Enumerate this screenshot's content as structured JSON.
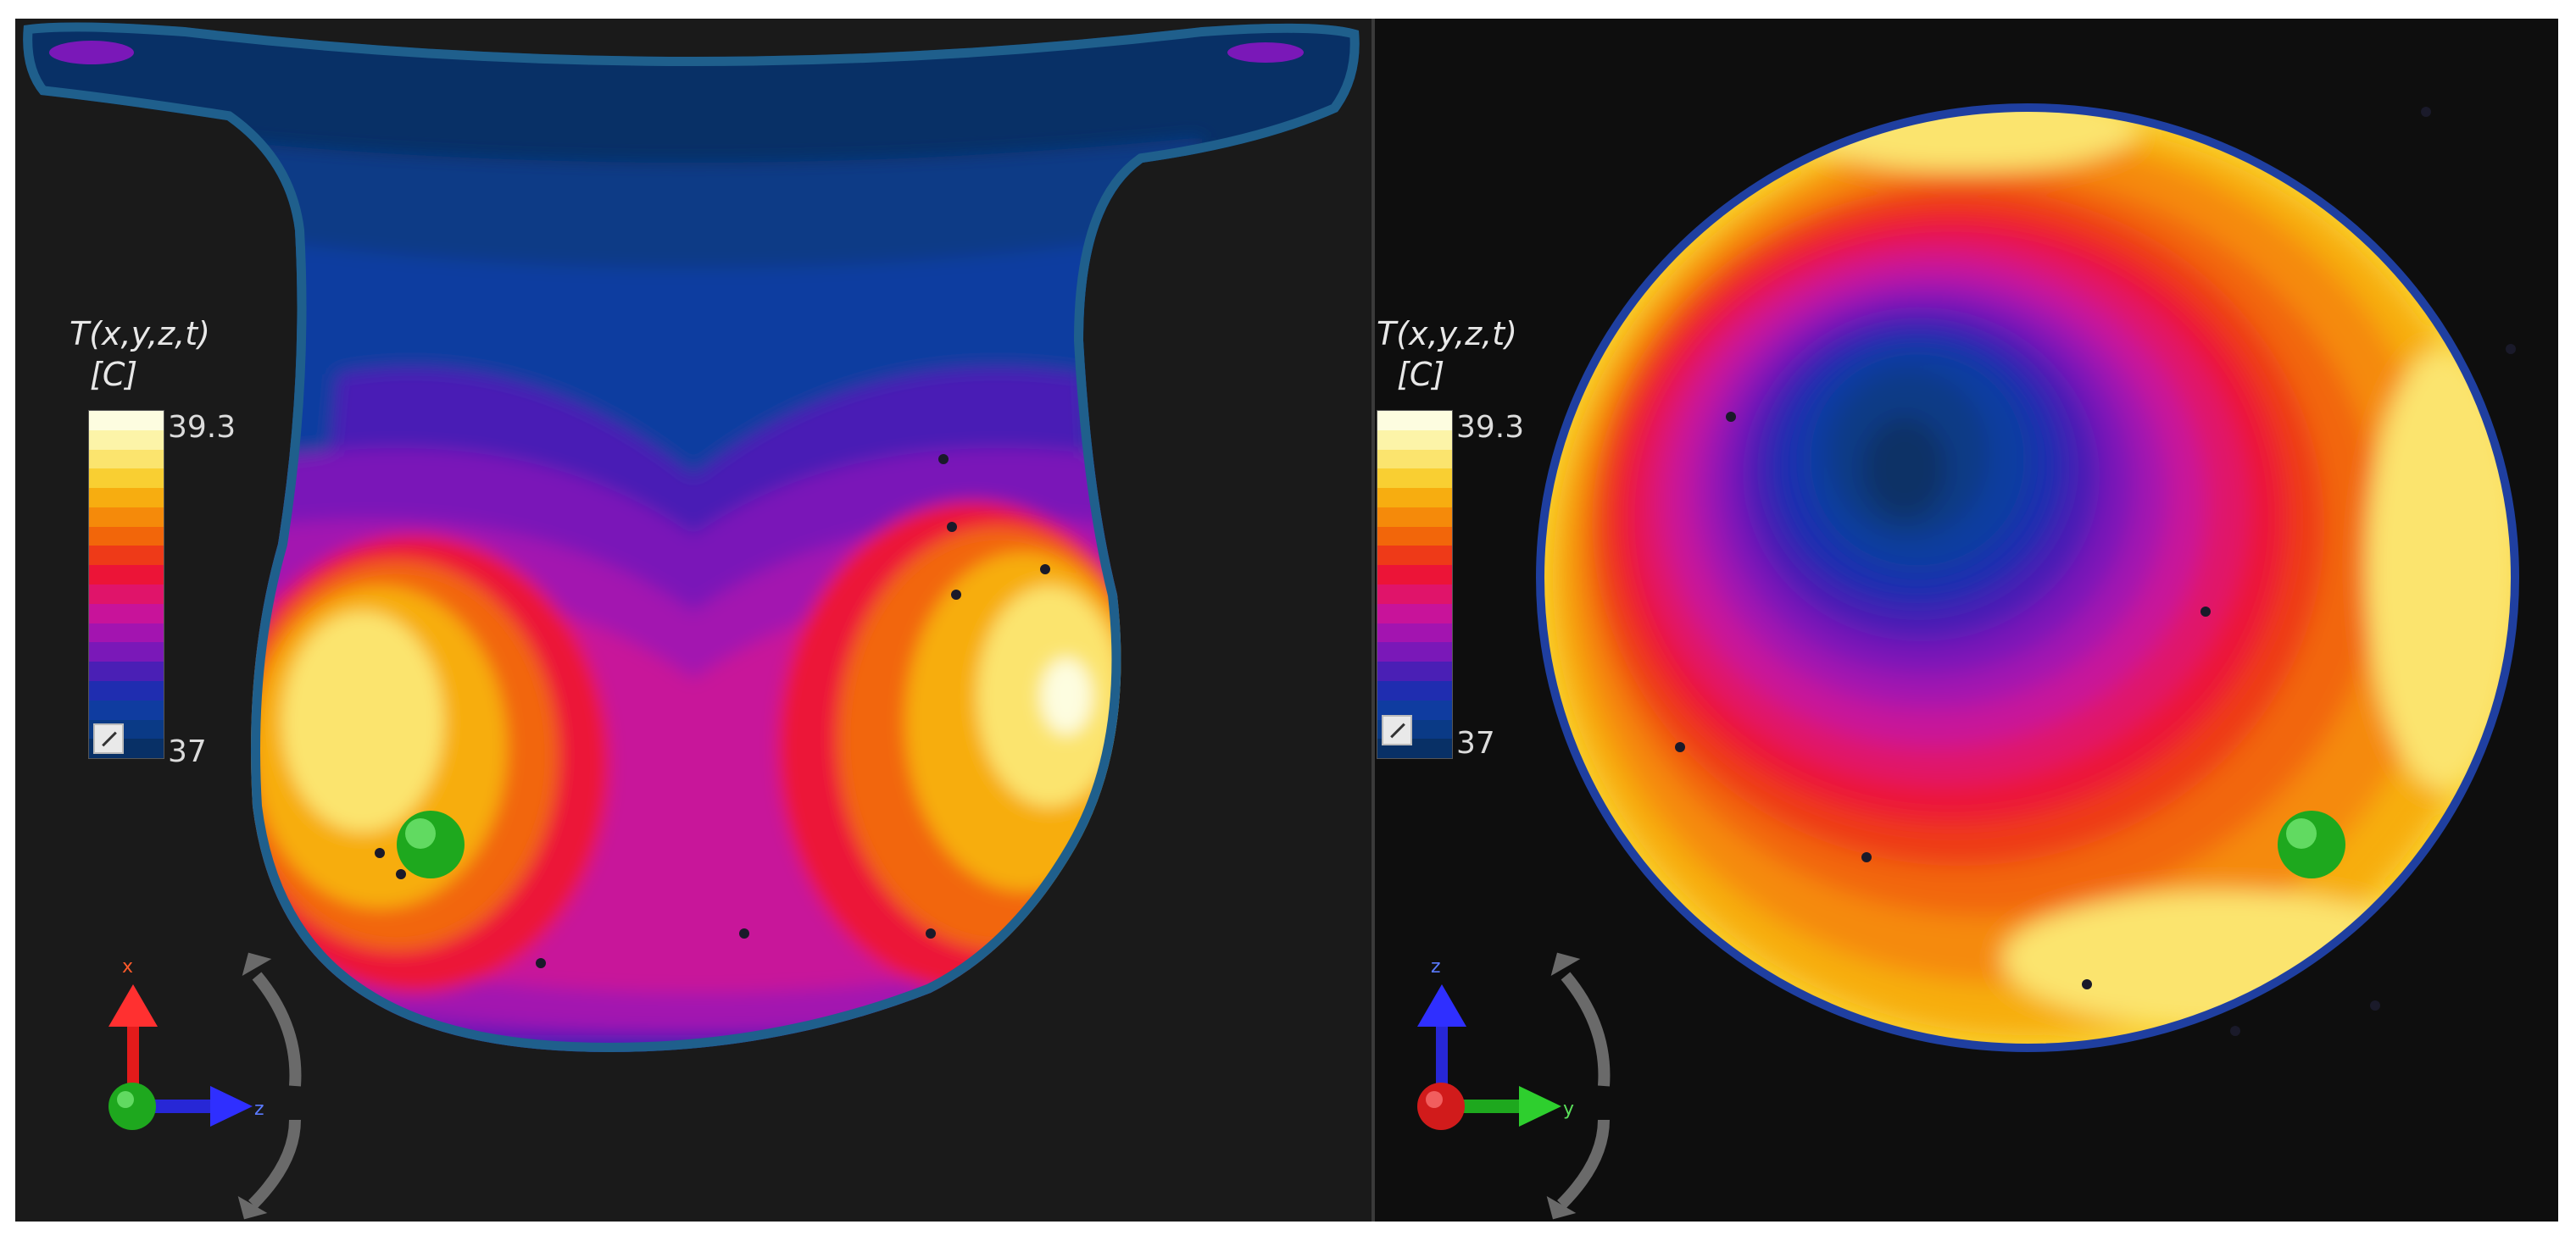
{
  "left_view": {
    "legend": {
      "title": "T(x,y,z,t)",
      "unit": "[C]",
      "max": "39.3",
      "min": "37"
    },
    "axes": {
      "up": "x",
      "right": "z"
    }
  },
  "right_view": {
    "legend": {
      "title": "T(x,y,z,t)",
      "unit": "[C]",
      "max": "39.3",
      "min": "37"
    },
    "axes": {
      "up": "z",
      "right": "y"
    }
  },
  "colormap": [
    "#fdfde0",
    "#fcf4a8",
    "#fbe46e",
    "#f9cf32",
    "#f7ad10",
    "#f58a0a",
    "#f2660a",
    "#ee3a18",
    "#ec1437",
    "#e0146a",
    "#c8139a",
    "#a314b0",
    "#7a18b8",
    "#4a1fb5",
    "#1f2db0",
    "#0f3ca0",
    "#0a3a86",
    "#083066"
  ],
  "colors": {
    "background": "#1b1b1b",
    "marker": "#2ecf2e"
  }
}
